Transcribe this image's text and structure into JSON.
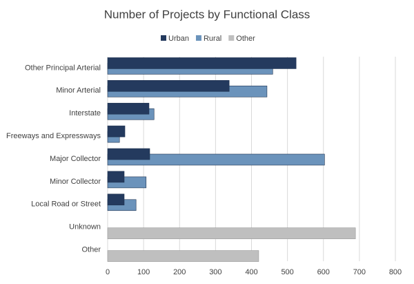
{
  "chart_data": {
    "type": "hbar",
    "title": "Number of Projects by Functional Class",
    "categories": [
      "Other Principal Arterial",
      "Minor Arterial",
      "Interstate",
      "Freeways and Expressways",
      "Major Collector",
      "Minor Collector",
      "Local Road or Street",
      "Unknown",
      "Other"
    ],
    "series": [
      {
        "name": "Urban",
        "color": "#243a5e",
        "values": [
          524,
          338,
          115,
          48,
          117,
          46,
          46,
          null,
          null
        ]
      },
      {
        "name": "Rural",
        "color": "#6b93bb",
        "values": [
          459,
          443,
          129,
          33,
          603,
          107,
          79,
          null,
          null
        ]
      },
      {
        "name": "Other",
        "color": "#bfbfbf",
        "values": [
          null,
          null,
          null,
          null,
          null,
          null,
          null,
          689,
          420
        ]
      }
    ],
    "xlim": [
      0,
      800
    ],
    "xticks": [
      0,
      100,
      200,
      300,
      400,
      500,
      600,
      700,
      800
    ],
    "grid": true,
    "legend": "top"
  }
}
